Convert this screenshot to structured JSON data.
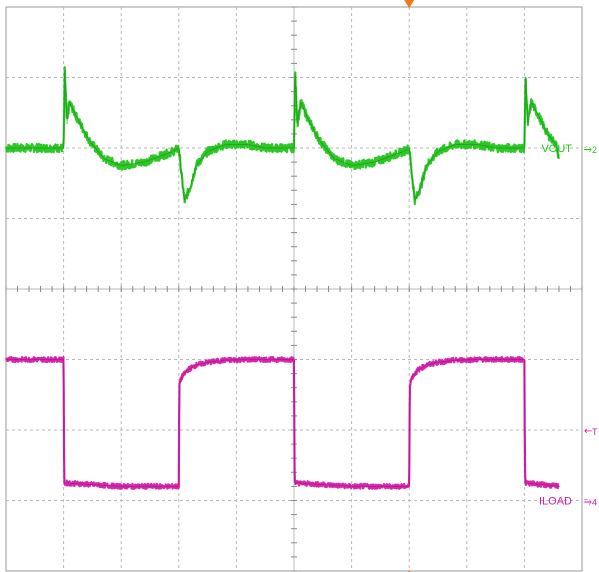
{
  "colors": {
    "grid": "#b8b8b8",
    "frame": "#999999",
    "vout": "#22c41a",
    "vout_dark": "#0f7a0f",
    "iload": "#d61aa8",
    "marker": "#f07a12"
  },
  "chart_data": {
    "type": "line",
    "title": "",
    "xlabel": "",
    "ylabel": "",
    "grid": true,
    "divisions": {
      "x": 10,
      "y": 8
    },
    "xlim": [
      0,
      10
    ],
    "ylim": [
      -4,
      4
    ],
    "trigger_marker_x": 7,
    "series": [
      {
        "name": "VOUT",
        "channel_tag": "2",
        "color": "#22c41a",
        "noise": 0.06,
        "x": [
          0,
          1.0,
          1.02,
          1.06,
          1.1,
          1.25,
          1.45,
          1.7,
          2.0,
          2.4,
          2.9,
          3.0,
          3.05,
          3.1,
          3.2,
          3.3,
          3.5,
          3.8,
          4.2,
          4.5,
          5.0,
          5.02,
          5.06,
          5.12,
          5.25,
          5.45,
          5.7,
          6.0,
          6.4,
          6.9,
          7.0,
          7.05,
          7.1,
          7.2,
          7.3,
          7.5,
          7.8,
          8.2,
          8.5,
          9.0,
          9.02,
          9.06,
          9.12,
          9.25,
          9.4,
          9.55,
          9.6
        ],
        "y": [
          2.0,
          2.0,
          3.1,
          2.35,
          2.65,
          2.4,
          2.1,
          1.85,
          1.75,
          1.8,
          1.95,
          2.0,
          1.6,
          1.25,
          1.45,
          1.75,
          1.95,
          2.05,
          2.05,
          2.0,
          2.0,
          3.05,
          2.35,
          2.65,
          2.4,
          2.1,
          1.85,
          1.75,
          1.8,
          1.95,
          2.0,
          1.6,
          1.25,
          1.45,
          1.75,
          1.95,
          2.05,
          2.05,
          2.0,
          2.0,
          3.0,
          2.35,
          2.65,
          2.45,
          2.2,
          2.05,
          1.85
        ]
      },
      {
        "name": "ILOAD",
        "channel_tag": "4",
        "color": "#d61aa8",
        "noise": 0.035,
        "x": [
          0,
          1.0,
          1.01,
          2.0,
          2.9,
          3.0,
          3.01,
          3.05,
          3.15,
          3.3,
          3.5,
          3.8,
          4.2,
          4.6,
          5.0,
          5.01,
          5.02,
          6.0,
          6.9,
          7.0,
          7.01,
          7.05,
          7.15,
          7.3,
          7.5,
          7.8,
          8.2,
          8.6,
          9.0,
          9.01,
          9.02,
          9.6
        ],
        "y": [
          -1.0,
          -1.0,
          -2.75,
          -2.8,
          -2.8,
          -2.8,
          -1.35,
          -1.25,
          -1.15,
          -1.08,
          -1.04,
          -1.01,
          -1.0,
          -1.0,
          -1.0,
          -2.6,
          -2.75,
          -2.8,
          -2.8,
          -2.8,
          -1.35,
          -1.25,
          -1.15,
          -1.08,
          -1.04,
          -1.01,
          -1.0,
          -1.0,
          -1.0,
          -2.6,
          -2.75,
          -2.8
        ]
      }
    ],
    "markers": [
      {
        "label": "VOUT",
        "glyph": "⭇",
        "tag": "2",
        "color": "#22c41a",
        "y": 2.0
      },
      {
        "label": "ILOAD",
        "glyph": "⭇",
        "tag": "4",
        "color": "#d61aa8",
        "y": -3.0
      },
      {
        "label": "",
        "glyph": "←",
        "tag": "T",
        "color": "#d61aa8",
        "y": -2.0
      }
    ]
  }
}
